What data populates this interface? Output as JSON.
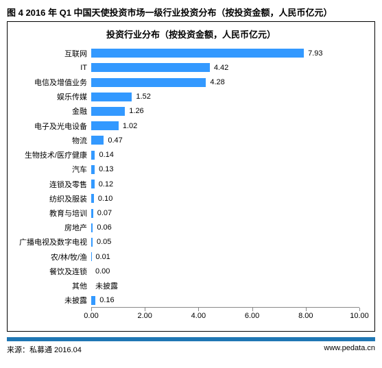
{
  "figure_title": "图 4 2016 年 Q1 中国天使投资市场一级行业投资分布（按投资金额，人民币亿元）",
  "chart": {
    "type": "bar-horizontal",
    "title": "投资行业分布（按投资金额，人民币亿元）",
    "xlim": [
      0,
      10
    ],
    "xtick_step": 2,
    "xticks": [
      "0.00",
      "2.00",
      "4.00",
      "6.00",
      "8.00",
      "10.00"
    ],
    "bar_color": "#3399ff",
    "background_color": "#ffffff",
    "axis_color": "#888888",
    "text_color": "#000000",
    "label_fontsize": 11,
    "title_fontsize": 13,
    "items": [
      {
        "category": "互联网",
        "value": 7.93,
        "label": "7.93"
      },
      {
        "category": "IT",
        "value": 4.42,
        "label": "4.42"
      },
      {
        "category": "电信及增值业务",
        "value": 4.28,
        "label": "4.28"
      },
      {
        "category": "娱乐传媒",
        "value": 1.52,
        "label": "1.52"
      },
      {
        "category": "金融",
        "value": 1.26,
        "label": "1.26"
      },
      {
        "category": "电子及光电设备",
        "value": 1.02,
        "label": "1.02"
      },
      {
        "category": "物流",
        "value": 0.47,
        "label": "0.47"
      },
      {
        "category": "生物技术/医疗健康",
        "value": 0.14,
        "label": "0.14"
      },
      {
        "category": "汽车",
        "value": 0.13,
        "label": "0.13"
      },
      {
        "category": "连锁及零售",
        "value": 0.12,
        "label": "0.12"
      },
      {
        "category": "纺织及服装",
        "value": 0.1,
        "label": "0.10"
      },
      {
        "category": "教育与培训",
        "value": 0.07,
        "label": "0.07"
      },
      {
        "category": "房地产",
        "value": 0.06,
        "label": "0.06"
      },
      {
        "category": "广播电视及数字电视",
        "value": 0.05,
        "label": "0.05"
      },
      {
        "category": "农/林/牧/渔",
        "value": 0.01,
        "label": "0.01"
      },
      {
        "category": "餐饮及连锁",
        "value": 0.0,
        "label": "0.00"
      },
      {
        "category": "其他",
        "value": null,
        "label": "未披露"
      },
      {
        "category": "未披露",
        "value": 0.16,
        "label": "0.16"
      }
    ]
  },
  "footer": {
    "source": "来源：私募通 2016.04",
    "url": "www.pedata.cn",
    "rule_color": "#1f77b4"
  }
}
